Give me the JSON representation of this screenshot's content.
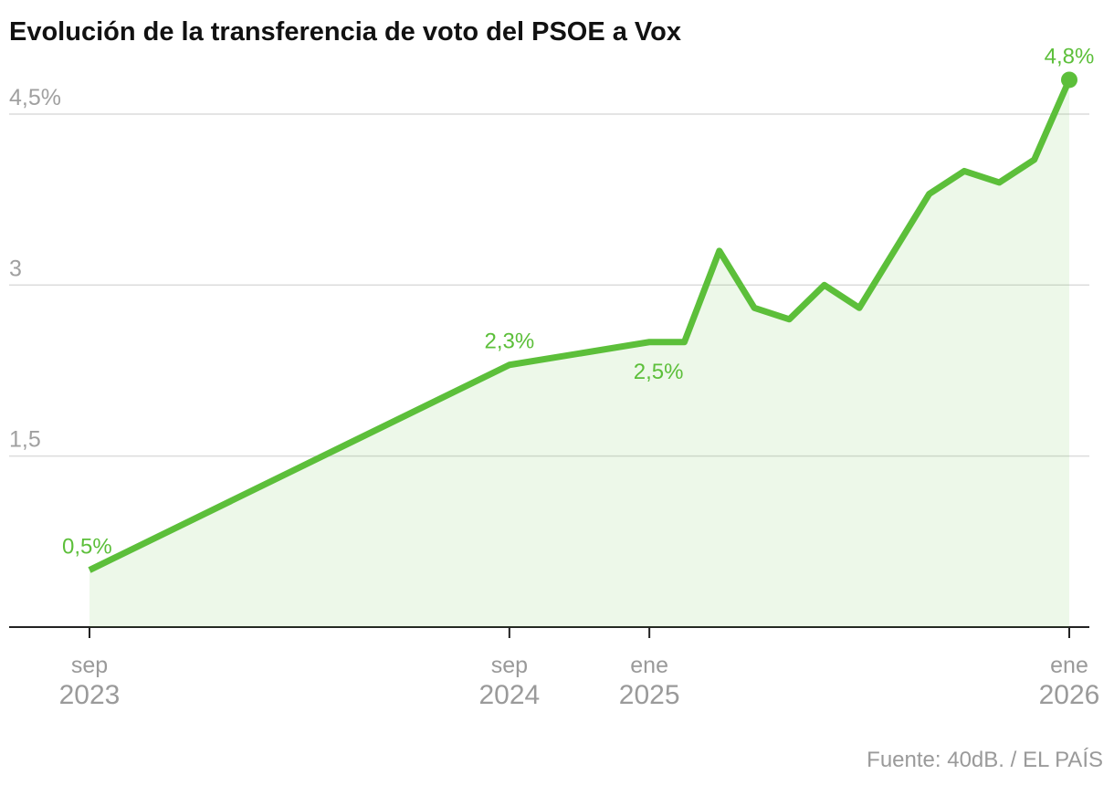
{
  "chart_data": {
    "type": "line",
    "title": "Evolución de la transferencia de voto del PSOE a Vox",
    "source": "Fuente: 40dB. / EL PAÍS",
    "x": [
      "2023-09",
      "2024-09",
      "2025-01",
      "2025-02",
      "2025-03",
      "2025-04",
      "2025-05",
      "2025-06",
      "2025-07",
      "2025-09",
      "2025-10",
      "2025-11",
      "2025-12",
      "2026-01"
    ],
    "series": [
      {
        "color": "#5cbf3a",
        "values": [
          0.5,
          2.3,
          2.5,
          2.5,
          3.3,
          2.8,
          2.7,
          3.0,
          2.8,
          3.8,
          4.0,
          3.9,
          4.1,
          4.8
        ],
        "value_labels": [
          "0,5%",
          "2,3%",
          "2,5%",
          null,
          null,
          null,
          null,
          null,
          null,
          null,
          null,
          null,
          null,
          "4,8%"
        ]
      }
    ],
    "xlim": [
      "2023-09",
      "2026-01"
    ],
    "xticks": [
      {
        "value": "2023-09",
        "label": [
          "sep",
          "2023"
        ]
      },
      {
        "value": "2024-09",
        "label": [
          "sep",
          "2024"
        ]
      },
      {
        "value": "2025-01",
        "label": [
          "ene",
          "2025"
        ]
      },
      {
        "value": "2026-01",
        "label": [
          "ene",
          "2026"
        ]
      }
    ],
    "ylim": [
      0,
      4.9
    ],
    "yticks": [
      {
        "value": 1.5,
        "label": "1,5"
      },
      3,
      {
        "value": 4.5,
        "label": "4,5%"
      }
    ],
    "grid": true
  }
}
